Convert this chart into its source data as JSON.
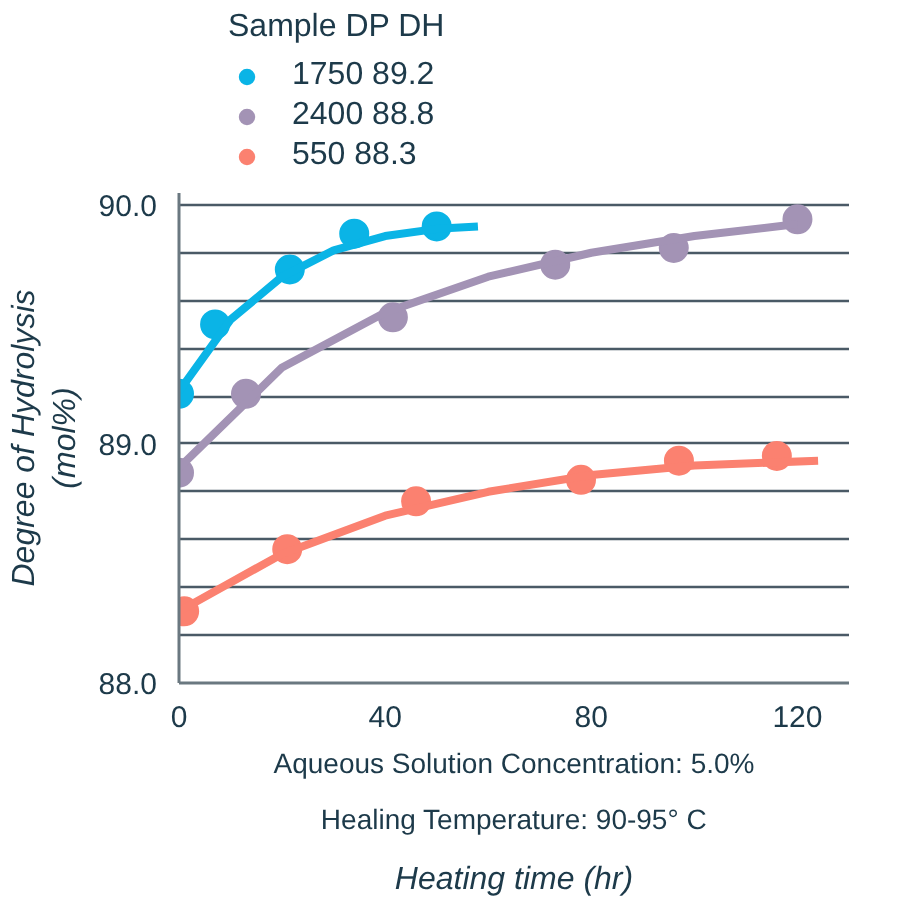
{
  "chart_data": {
    "type": "scatter",
    "xlabel": "Heating time (hr)",
    "ylabel": "Degree of Hydrolysis\n(mol%)",
    "legend_title": "Sample DP DH",
    "annotations": [
      "Aqueous Solution Concentration: 5.0%",
      "Healing Temperature: 90-95° C"
    ],
    "xlim": [
      0,
      130
    ],
    "xticks": [
      0,
      40,
      80,
      120
    ],
    "ylim": [
      88,
      90.05
    ],
    "yticks": [
      {
        "value": 88,
        "label": "88.0"
      },
      {
        "value": 88.2,
        "label": null
      },
      {
        "value": 88.4,
        "label": null
      },
      {
        "value": 88.6,
        "label": null
      },
      {
        "value": 88.8,
        "label": null
      },
      {
        "value": 89,
        "label": "89.0"
      },
      {
        "value": 89.2,
        "label": null
      },
      {
        "value": 89.4,
        "label": null
      },
      {
        "value": 89.6,
        "label": null
      },
      {
        "value": 89.8,
        "label": null
      },
      {
        "value": 90,
        "label": "90.0"
      }
    ],
    "grid": "y",
    "legend": "top left",
    "series": [
      {
        "name": "1750 89.2",
        "marker": "circle",
        "color": "#0ab4e6",
        "x": [
          0,
          7,
          21.5,
          34,
          50
        ],
        "values": [
          89.21,
          89.5,
          89.73,
          89.88,
          89.91
        ]
      },
      {
        "name": "2400 88.8",
        "marker": "circle",
        "color": "#a393b5",
        "x": [
          0,
          13,
          41.5,
          73,
          96,
          120
        ],
        "values": [
          88.88,
          89.21,
          89.53,
          89.75,
          89.82,
          89.94
        ]
      },
      {
        "name": "550 88.3",
        "marker": "circle",
        "color": "#fb8170",
        "x": [
          1,
          21,
          46,
          78,
          97,
          116
        ],
        "values": [
          88.3,
          88.56,
          88.76,
          88.85,
          88.93,
          88.95
        ]
      },
      {
        "type": "line",
        "color": "#0ab4e6",
        "x": [
          0,
          10,
          20,
          30,
          40,
          50,
          58
        ],
        "values": [
          89.22,
          89.52,
          89.7,
          89.81,
          89.87,
          89.9,
          89.91
        ]
      },
      {
        "type": "line",
        "color": "#a393b5",
        "x": [
          0,
          20,
          40,
          60,
          80,
          100,
          120
        ],
        "values": [
          88.9,
          89.32,
          89.55,
          89.7,
          89.8,
          89.87,
          89.92
        ]
      },
      {
        "type": "line",
        "color": "#fb8170",
        "x": [
          0,
          20,
          40,
          60,
          80,
          100,
          124
        ],
        "values": [
          88.3,
          88.54,
          88.7,
          88.8,
          88.87,
          88.91,
          88.93
        ]
      }
    ]
  }
}
